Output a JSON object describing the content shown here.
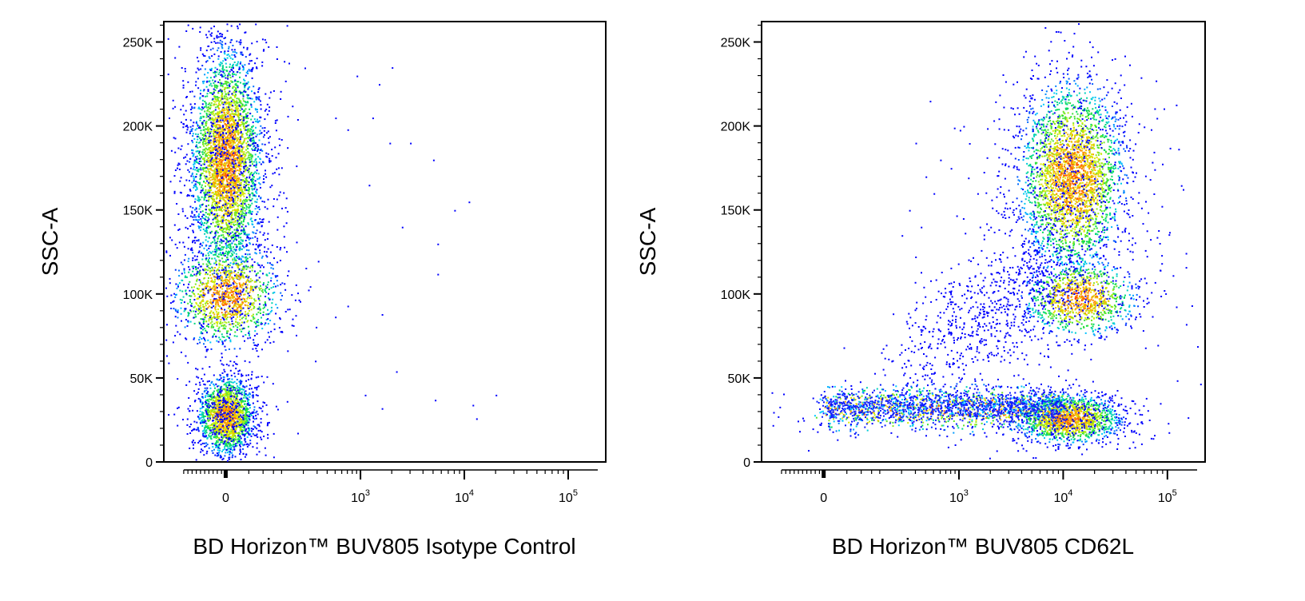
{
  "chart_data": [
    {
      "type": "scatter",
      "title": "",
      "xlabel": "BD Horizon™ BUV805 Isotype Control",
      "ylabel": "SSC-A",
      "x_scale": "biexponential",
      "x_ticks": [
        {
          "value": 0,
          "base": "0",
          "exp": ""
        },
        {
          "value": 1000,
          "base": "10",
          "exp": "3"
        },
        {
          "value": 10000,
          "base": "10",
          "exp": "4"
        },
        {
          "value": 100000,
          "base": "10",
          "exp": "5"
        }
      ],
      "y_ticks": [
        {
          "value": 0,
          "label": "0"
        },
        {
          "value": 50000,
          "label": "50K"
        },
        {
          "value": 100000,
          "label": "100K"
        },
        {
          "value": 150000,
          "label": "150K"
        },
        {
          "value": 200000,
          "label": "200K"
        },
        {
          "value": 250000,
          "label": "250K"
        }
      ],
      "ylim": [
        0,
        262144
      ],
      "colormap": "density (blue→cyan→green→yellow→red)",
      "populations": [
        {
          "x_center": 0,
          "y_center": 28000,
          "count": 1600
        },
        {
          "x_center": 0,
          "y_center": 180000,
          "count": 3200
        },
        {
          "x_center": 0,
          "y_center": 100000,
          "count": 1100
        }
      ],
      "sparse_points": [
        [
          900,
          230000
        ],
        [
          1300,
          205000
        ],
        [
          2000,
          235000
        ],
        [
          1500,
          225000
        ],
        [
          3000,
          190000
        ],
        [
          5000,
          180000
        ],
        [
          1200,
          165000
        ],
        [
          8000,
          150000
        ],
        [
          11000,
          155000
        ],
        [
          2500,
          140000
        ],
        [
          5500,
          130000
        ],
        [
          5500,
          112000
        ],
        [
          700,
          93000
        ],
        [
          1600,
          88000
        ],
        [
          2200,
          54000
        ],
        [
          1100,
          40000
        ],
        [
          1600,
          32000
        ],
        [
          5200,
          37000
        ],
        [
          12000,
          34000
        ],
        [
          20000,
          40000
        ],
        [
          13000,
          26000
        ],
        [
          500,
          205000
        ],
        [
          700,
          198000
        ],
        [
          1900,
          190000
        ]
      ]
    },
    {
      "type": "scatter",
      "title": "",
      "xlabel": "BD Horizon™ BUV805 CD62L",
      "ylabel": "SSC-A",
      "x_scale": "biexponential",
      "x_ticks": [
        {
          "value": 0,
          "base": "0",
          "exp": ""
        },
        {
          "value": 1000,
          "base": "10",
          "exp": "3"
        },
        {
          "value": 10000,
          "base": "10",
          "exp": "4"
        },
        {
          "value": 100000,
          "base": "10",
          "exp": "5"
        }
      ],
      "y_ticks": [
        {
          "value": 0,
          "label": "0"
        },
        {
          "value": 50000,
          "label": "50K"
        },
        {
          "value": 100000,
          "label": "100K"
        },
        {
          "value": 150000,
          "label": "150K"
        },
        {
          "value": 200000,
          "label": "200K"
        },
        {
          "value": 250000,
          "label": "250K"
        }
      ],
      "ylim": [
        0,
        262144
      ],
      "colormap": "density (blue→cyan→green→yellow→red)",
      "populations": [
        {
          "x_center": 0,
          "y_center": 32000,
          "count": 700
        },
        {
          "x_center": 11000,
          "y_center": 26000,
          "count": 1300
        },
        {
          "x_center": 12000,
          "y_center": 170000,
          "count": 2600
        },
        {
          "x_center": 14000,
          "y_center": 98000,
          "count": 900
        }
      ],
      "sparse_points": [
        [
          300,
          190000
        ],
        [
          400,
          170000
        ],
        [
          500,
          160000
        ],
        [
          350,
          140000
        ],
        [
          250,
          150000
        ],
        [
          200,
          135000
        ],
        [
          600,
          180000
        ],
        [
          450,
          215000
        ],
        [
          1100,
          200000
        ],
        [
          800,
          175000
        ],
        [
          1500,
          160000
        ],
        [
          2000,
          140000
        ]
      ]
    }
  ]
}
